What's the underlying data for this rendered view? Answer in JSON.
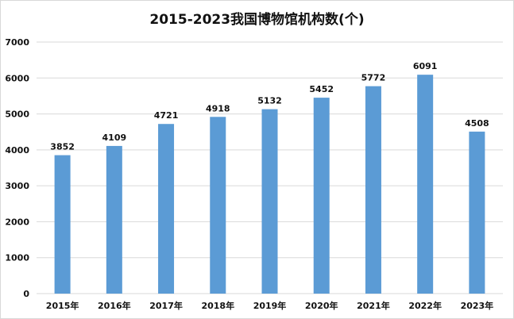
{
  "chart_data": {
    "type": "bar",
    "title": "2015-2023我国博物馆机构数(个)",
    "categories": [
      "2015年",
      "2016年",
      "2017年",
      "2018年",
      "2019年",
      "2020年",
      "2021年",
      "2022年",
      "2023年"
    ],
    "values": [
      3852,
      4109,
      4721,
      4918,
      5132,
      5452,
      5772,
      6091,
      4508
    ],
    "ylim": [
      0,
      7000
    ],
    "yticks": [
      0,
      1000,
      2000,
      3000,
      4000,
      5000,
      6000,
      7000
    ],
    "grid": true,
    "legend": "none",
    "bar_color": "#5b9bd5",
    "grid_color": "#d9d9d9",
    "data_labels": true
  }
}
